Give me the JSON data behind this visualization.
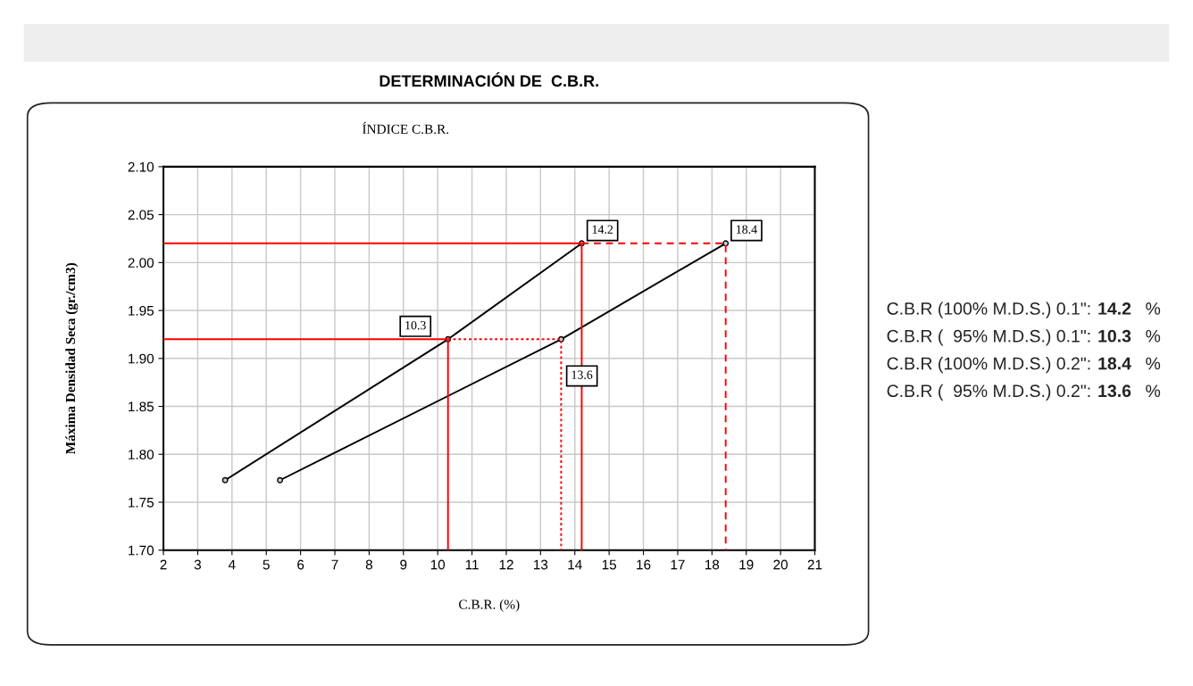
{
  "chart_data": {
    "type": "line",
    "title": "DETERMINACIÓN DE  C.B.R.",
    "subtitle": "ÍNDICE C.B.R.",
    "xlabel": "C.B.R. (%)",
    "ylabel": "Máxima Densidad Seca (gr./cm3)",
    "xlim": [
      2,
      21
    ],
    "xticks": [
      2,
      3,
      4,
      5,
      6,
      7,
      8,
      9,
      10,
      11,
      12,
      13,
      14,
      15,
      16,
      17,
      18,
      19,
      20,
      21
    ],
    "ylim": [
      1.7,
      2.1
    ],
    "yticks": [
      {
        "value": 1.7,
        "label": "1.70"
      },
      {
        "value": 1.75,
        "label": "1.75"
      },
      {
        "value": 1.8,
        "label": "1.80"
      },
      {
        "value": 1.85,
        "label": "1.85"
      },
      {
        "value": 1.9,
        "label": "1.90"
      },
      {
        "value": 1.95,
        "label": "1.95"
      },
      {
        "value": 2.0,
        "label": "2.00"
      },
      {
        "value": 2.05,
        "label": "2.05"
      },
      {
        "value": 2.1,
        "label": "2.10"
      }
    ],
    "grid": true,
    "marker": "circle",
    "line_style": "solid",
    "series": [
      {
        "color": "#000000",
        "x": [
          3.8,
          10.3,
          14.2
        ],
        "values": [
          1.773,
          1.92,
          2.02
        ]
      },
      {
        "color": "#000000",
        "x": [
          5.4,
          13.6,
          18.4
        ],
        "values": [
          1.773,
          1.92,
          2.02
        ]
      },
      {
        "color": "#ff0000",
        "marker": "none",
        "x": [
          2,
          10.3,
          10.3
        ],
        "values": [
          1.92,
          1.92,
          1.7
        ]
      },
      {
        "color": "#ff0000",
        "marker": "none",
        "x": [
          2,
          14.2,
          14.2
        ],
        "values": [
          2.02,
          2.02,
          1.7
        ]
      },
      {
        "color": "#ff0000",
        "marker": "none",
        "line_style": "dotted",
        "x": [
          10.3,
          13.6,
          13.6
        ],
        "values": [
          1.92,
          1.92,
          1.7
        ]
      },
      {
        "color": "#ff0000",
        "marker": "none",
        "line_style": "dashed",
        "x": [
          14.2,
          18.4,
          18.4
        ],
        "values": [
          2.02,
          2.02,
          1.7
        ]
      }
    ],
    "annotations": [
      {
        "text": "14.2",
        "x": 14.2,
        "y": 2.02
      },
      {
        "text": "18.4",
        "x": 18.4,
        "y": 2.02
      },
      {
        "text": "10.3",
        "x": 10.3,
        "y": 1.92
      },
      {
        "text": "13.6",
        "x": 13.6,
        "y": 1.92
      },
      "C.B.R (100% M.D.S.) 0.1\":",
      "14.2",
      "%",
      "C.B.R (  95% M.D.S.) 0.1\":",
      "10.3",
      "%",
      "C.B.R (100% M.D.S.) 0.2\":",
      "18.4",
      "%",
      "C.B.R (  95% M.D.S.) 0.2\":",
      "13.6",
      "%"
    ]
  }
}
